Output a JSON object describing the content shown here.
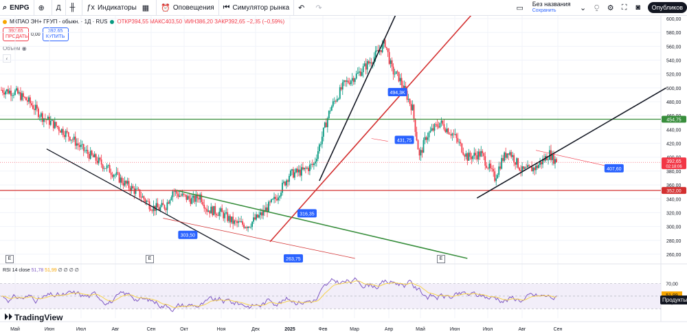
{
  "toolbar": {
    "symbol": "ENPG",
    "interval": "Д",
    "indicators_label": "Индикаторы",
    "alerts_label": "Оповещения",
    "replay_label": "Симулятор рынка",
    "layout_name": "Без названия",
    "layout_saved": "Сохранить",
    "publish_label": "Опубликов"
  },
  "legend": {
    "title": "МКПАО ЭН+ ГРУП - обыкн. · 1Д · RUS",
    "ohlc": "ОТКР394,55  МАКС403,50  МИН386,20  ЗАКР392,65  −2,35 (−0,59%)",
    "sell_price": "392,65",
    "sell_label": "ПРОДАТЬ",
    "spread": "0,00",
    "buy_price": "392,65",
    "buy_label": "КУПИТЬ",
    "volume_label": "Объём"
  },
  "rsi": {
    "label": "RSI 14 close",
    "value": "51,78",
    "ma_value": "51,99",
    "extra": "∅ ∅ ∅ ∅",
    "levels": [
      70,
      50,
      30
    ],
    "right_labels": [
      "70,00",
      "51,99",
      "40,00"
    ]
  },
  "tooltip": "Продукты",
  "logo_text": "TradingView",
  "colors": {
    "up": "#089981",
    "down": "#f23645",
    "green_line": "#388e3c",
    "red_line": "#d32f2f",
    "rsi_line": "#7e57c2",
    "rsi_ma": "#f7d24a"
  },
  "chart_data": {
    "type": "candlestick",
    "title": "МКПАО ЭН+ ГРУП - обыкн. · 1Д · RUS",
    "x_ticks": [
      "Май",
      "Июн",
      "Июл",
      "Авг",
      "Сен",
      "Окт",
      "Ноя",
      "Дек",
      "2025",
      "Фев",
      "Мар",
      "Апр",
      "Май",
      "Июн",
      "Июл",
      "Авг",
      "Сен"
    ],
    "y_ticks": [
      600,
      580,
      560,
      540,
      520,
      500,
      480,
      460,
      440,
      420,
      400,
      380,
      360,
      340,
      320,
      300,
      280,
      260
    ],
    "ylim": [
      252,
      604
    ],
    "price_path": [
      [
        0,
        497
      ],
      [
        10,
        494
      ],
      [
        20,
        480
      ],
      [
        30,
        458
      ],
      [
        40,
        445
      ],
      [
        50,
        430
      ],
      [
        60,
        410
      ],
      [
        70,
        395
      ],
      [
        80,
        380
      ],
      [
        90,
        362
      ],
      [
        100,
        348
      ],
      [
        110,
        328
      ],
      [
        115,
        326
      ],
      [
        120,
        330
      ],
      [
        125,
        352
      ],
      [
        130,
        345
      ],
      [
        140,
        338
      ],
      [
        145,
        345
      ],
      [
        150,
        325
      ],
      [
        160,
        320
      ],
      [
        170,
        305
      ],
      [
        180,
        302
      ],
      [
        190,
        318
      ],
      [
        200,
        340
      ],
      [
        210,
        375
      ],
      [
        220,
        380
      ],
      [
        228,
        390
      ],
      [
        240,
        470
      ],
      [
        250,
        505
      ],
      [
        260,
        520
      ],
      [
        270,
        540
      ],
      [
        280,
        565
      ],
      [
        285,
        525
      ],
      [
        290,
        515
      ],
      [
        300,
        470
      ],
      [
        305,
        400
      ],
      [
        310,
        430
      ],
      [
        320,
        450
      ],
      [
        330,
        432
      ],
      [
        340,
        400
      ],
      [
        350,
        405
      ],
      [
        360,
        370
      ],
      [
        365,
        395
      ],
      [
        370,
        410
      ],
      [
        380,
        380
      ],
      [
        390,
        385
      ],
      [
        400,
        405
      ],
      [
        405,
        392.65
      ]
    ],
    "horizontal_levels": [
      {
        "price": 454.75,
        "label": "454,75",
        "color": "green"
      },
      {
        "price": 352.0,
        "label": "352,00",
        "color": "red"
      }
    ],
    "price_callouts": [
      "494,3K",
      "431,75",
      "407,60",
      "316,35",
      "303,50",
      "263,75"
    ],
    "last_price": "392,65",
    "countdown": "02:18:06",
    "grid": true
  }
}
